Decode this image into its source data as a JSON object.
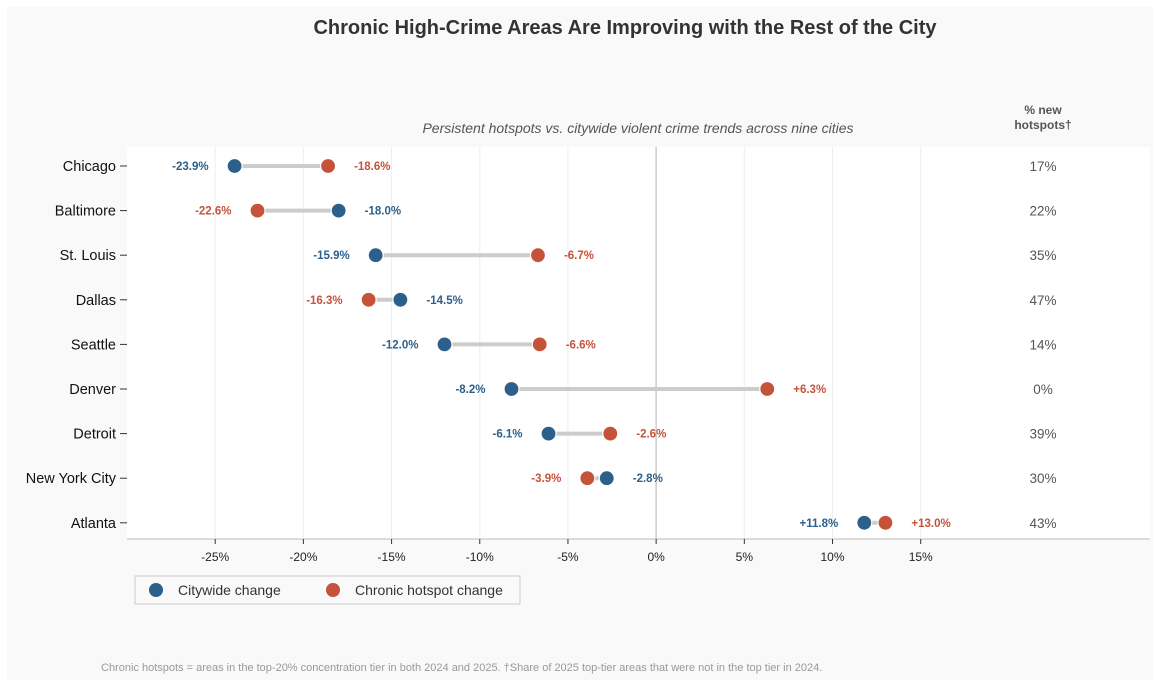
{
  "chart_data": {
    "type": "dumbbell",
    "title": "Chronic High-Crime Areas Are Improving with the Rest of the City",
    "subtitle": "Persistent hotspots vs. citywide violent crime trends across nine cities",
    "right_column_header": [
      "% new",
      "hotspots†"
    ],
    "footnote": "Chronic hotspots = areas in the top-20% concentration tier in both 2024 and 2025. †Share of 2025 top-tier areas that were not in the top tier in 2024.",
    "x_ticks": [
      "-25%",
      "-20%",
      "-15%",
      "-10%",
      "-5%",
      "0%",
      "5%",
      "10%",
      "15%"
    ],
    "x_tick_values": [
      -25,
      -20,
      -15,
      -10,
      -5,
      0,
      5,
      10,
      15
    ],
    "xlim": [
      -30,
      28
    ],
    "grid": "vertical",
    "legend_position": "bottom-left",
    "colors": {
      "citywide": "#2c5f8a",
      "hotspot": "#c4533a",
      "connector": "#cccccc"
    },
    "series": [
      {
        "name": "Citywide change",
        "values": [
          -23.9,
          -18.0,
          -15.9,
          -14.5,
          -12.0,
          -8.2,
          -6.1,
          -2.8,
          11.8
        ],
        "labels": [
          "-23.9%",
          "-18.0%",
          "-15.9%",
          "-14.5%",
          "-12.0%",
          "-8.2%",
          "-6.1%",
          "-2.8%",
          "+11.8%"
        ]
      },
      {
        "name": "Chronic hotspot change",
        "values": [
          -18.6,
          -22.6,
          -6.7,
          -16.3,
          -6.6,
          6.3,
          -2.6,
          -3.9,
          13.0
        ],
        "labels": [
          "-18.6%",
          "-22.6%",
          "-6.7%",
          "-16.3%",
          "-6.6%",
          "+6.3%",
          "-2.6%",
          "-3.9%",
          "+13.0%"
        ]
      }
    ],
    "categories": [
      "Chicago",
      "Baltimore",
      "St. Louis",
      "Dallas",
      "Seattle",
      "Denver",
      "Detroit",
      "New York City",
      "Atlanta"
    ],
    "new_hotspots": [
      "17%",
      "22%",
      "35%",
      "47%",
      "14%",
      "0%",
      "39%",
      "30%",
      "43%"
    ]
  }
}
